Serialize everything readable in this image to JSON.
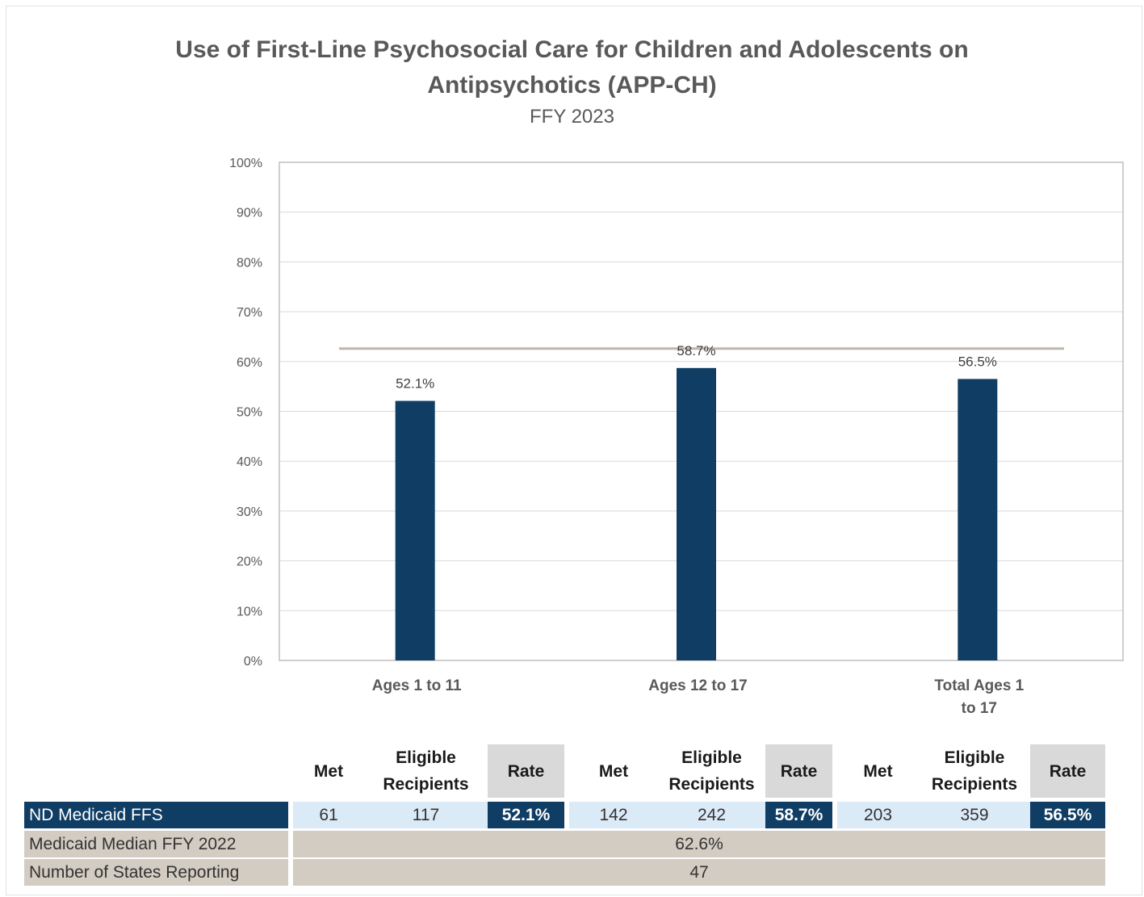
{
  "title_line1": "Use of First-Line Psychosocial Care for Children and Adolescents on",
  "title_line2": "Antipsychotics (APP-CH)",
  "subtitle": "FFY 2023",
  "colors": {
    "bar": "#0f3d64",
    "median_line": "#bdb6aa",
    "grid": "#d9d9d9",
    "row_navy": "#0f3d64",
    "row_gray": "#d2ccc2",
    "row_light": "#dbeaf7"
  },
  "chart_data": {
    "type": "bar",
    "title": "Use of First-Line Psychosocial Care for Children and Adolescents on Antipsychotics (APP-CH)",
    "subtitle": "FFY 2023",
    "categories": [
      [
        "Ages 1 to 11"
      ],
      [
        "Ages 12 to 17"
      ],
      [
        "Total Ages 1",
        "to 17"
      ]
    ],
    "series": [
      {
        "name": "ND Medicaid FFS",
        "values": [
          52.1,
          58.7,
          56.5
        ],
        "labels": [
          "52.1%",
          "58.7%",
          "56.5%"
        ]
      }
    ],
    "reference_line": {
      "name": "Medicaid Median FFY 2022",
      "value": 62.6
    },
    "ylim": [
      0,
      100
    ],
    "yticks": [
      0,
      10,
      20,
      30,
      40,
      50,
      60,
      70,
      80,
      90,
      100
    ],
    "ytick_suffix": "%",
    "grid": true,
    "legend": "none"
  },
  "table": {
    "groups": [
      {
        "headers": [
          "Met",
          "Eligible Recipients",
          "Rate"
        ],
        "values": [
          "61",
          "117",
          "52.1%"
        ]
      },
      {
        "headers": [
          "Met",
          "Eligible Recipients",
          "Rate"
        ],
        "values": [
          "142",
          "242",
          "58.7%"
        ]
      },
      {
        "headers": [
          "Met",
          "Eligible Recipients",
          "Rate"
        ],
        "values": [
          "203",
          "359",
          "56.5%"
        ]
      }
    ],
    "rows": {
      "nd_label": "ND Medicaid FFS",
      "median_label": "Medicaid Median FFY 2022",
      "median_value": "62.6%",
      "states_label": "Number of States Reporting",
      "states_value": "47"
    }
  }
}
